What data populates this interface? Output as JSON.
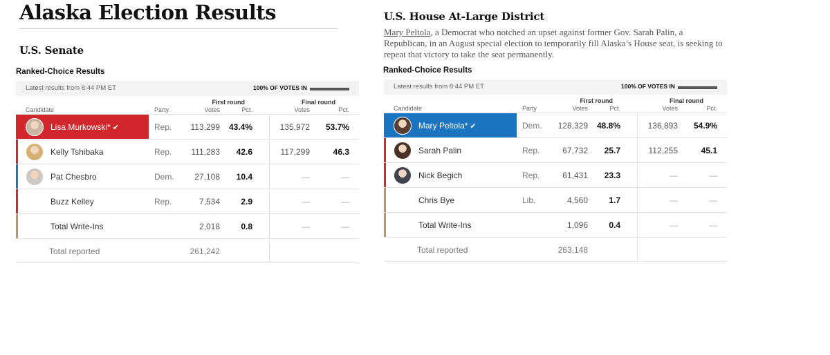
{
  "page_title": "Alaska Election Results",
  "colors": {
    "dem": "#1a74c0",
    "rep": "#d0262c",
    "other": "#b99768",
    "none": "#ffffff"
  },
  "senate": {
    "title": "U.S. Senate",
    "rc_label": "Ranked-Choice Results",
    "latest": "Latest results from 8:44 PM ET",
    "pct_in": "100% OF VOTES IN",
    "pct_value": 100,
    "headers": {
      "candidate": "Candidate",
      "party": "Party",
      "first_round": "First round",
      "final_round": "Final round",
      "votes": "Votes",
      "pct": "Pct."
    },
    "rows": [
      {
        "name": "Lisa Murkowski*",
        "party": "Rep.",
        "v1": "113,299",
        "p1": "43.4%",
        "v2": "135,972",
        "p2": "53.7%",
        "leader": true,
        "bar": "rep",
        "avatar": "#c9b5a3"
      },
      {
        "name": "Kelly Tshibaka",
        "party": "Rep.",
        "v1": "111,283",
        "p1": "42.6",
        "v2": "117,299",
        "p2": "46.3",
        "leader": false,
        "bar": "rep",
        "avatar": "#d7b173"
      },
      {
        "name": "Pat Chesbro",
        "party": "Dem.",
        "v1": "27,108",
        "p1": "10.4",
        "v2": "—",
        "p2": "—",
        "leader": false,
        "bar": "dem",
        "avatar": "#cfc7c2"
      },
      {
        "name": "Buzz Kelley",
        "party": "Rep.",
        "v1": "7,534",
        "p1": "2.9",
        "v2": "—",
        "p2": "—",
        "leader": false,
        "bar": "rep",
        "avatar": ""
      },
      {
        "name": "Total Write-Ins",
        "party": "",
        "v1": "2,018",
        "p1": "0.8",
        "v2": "—",
        "p2": "—",
        "leader": false,
        "bar": "other",
        "avatar": ""
      }
    ],
    "total_label": "Total reported",
    "total_votes": "261,242"
  },
  "house": {
    "title": "U.S. House At-Large District",
    "desc_name": "Mary Peltola",
    "desc_rest": ", a Democrat who notched an upset against former Gov. Sarah Palin, a Republican, in an August special election to temporarily fill Alaska’s House seat, is seeking to repeat that victory to take the seat permanently.",
    "rc_label": "Ranked-Choice Results",
    "latest": "Latest results from 8:44 PM ET",
    "pct_in": "100% OF VOTES IN",
    "pct_value": 100,
    "headers": {
      "candidate": "Candidate",
      "party": "Party",
      "first_round": "First round",
      "final_round": "Final round",
      "votes": "Votes",
      "pct": "Pct."
    },
    "rows": [
      {
        "name": "Mary Peltola*",
        "party": "Dem.",
        "v1": "128,329",
        "p1": "48.8%",
        "v2": "136,893",
        "p2": "54.9%",
        "leader": true,
        "bar": "dem",
        "avatar": "#5a3e32"
      },
      {
        "name": "Sarah Palin",
        "party": "Rep.",
        "v1": "67,732",
        "p1": "25.7",
        "v2": "112,255",
        "p2": "45.1",
        "leader": false,
        "bar": "rep",
        "avatar": "#4a3128"
      },
      {
        "name": "Nick Begich",
        "party": "Rep.",
        "v1": "61,431",
        "p1": "23.3",
        "v2": "—",
        "p2": "—",
        "leader": false,
        "bar": "rep",
        "avatar": "#40444e"
      },
      {
        "name": "Chris Bye",
        "party": "Lib.",
        "v1": "4,560",
        "p1": "1.7",
        "v2": "—",
        "p2": "—",
        "leader": false,
        "bar": "other",
        "avatar": ""
      },
      {
        "name": "Total Write-Ins",
        "party": "",
        "v1": "1,096",
        "p1": "0.4",
        "v2": "—",
        "p2": "—",
        "leader": false,
        "bar": "other",
        "avatar": ""
      }
    ],
    "total_label": "Total reported",
    "total_votes": "263,148"
  }
}
